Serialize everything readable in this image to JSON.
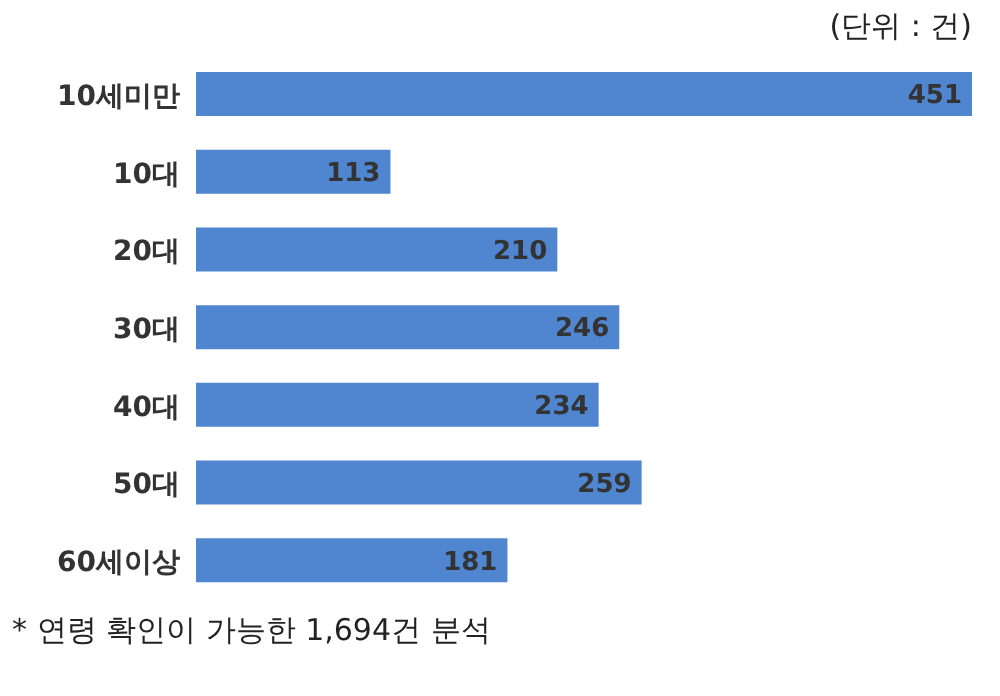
{
  "chart_data": {
    "type": "bar",
    "orientation": "horizontal",
    "categories": [
      "10세미만",
      "10대",
      "20대",
      "30대",
      "40대",
      "50대",
      "60세이상"
    ],
    "values": [
      451,
      113,
      210,
      246,
      234,
      259,
      181
    ],
    "color": "#4f86cf",
    "data_labels": true,
    "grid": false,
    "legend": false,
    "annotations": [
      "(단위 : 건)",
      "* 연령 확인이 가능한 1,694건 분석"
    ]
  }
}
